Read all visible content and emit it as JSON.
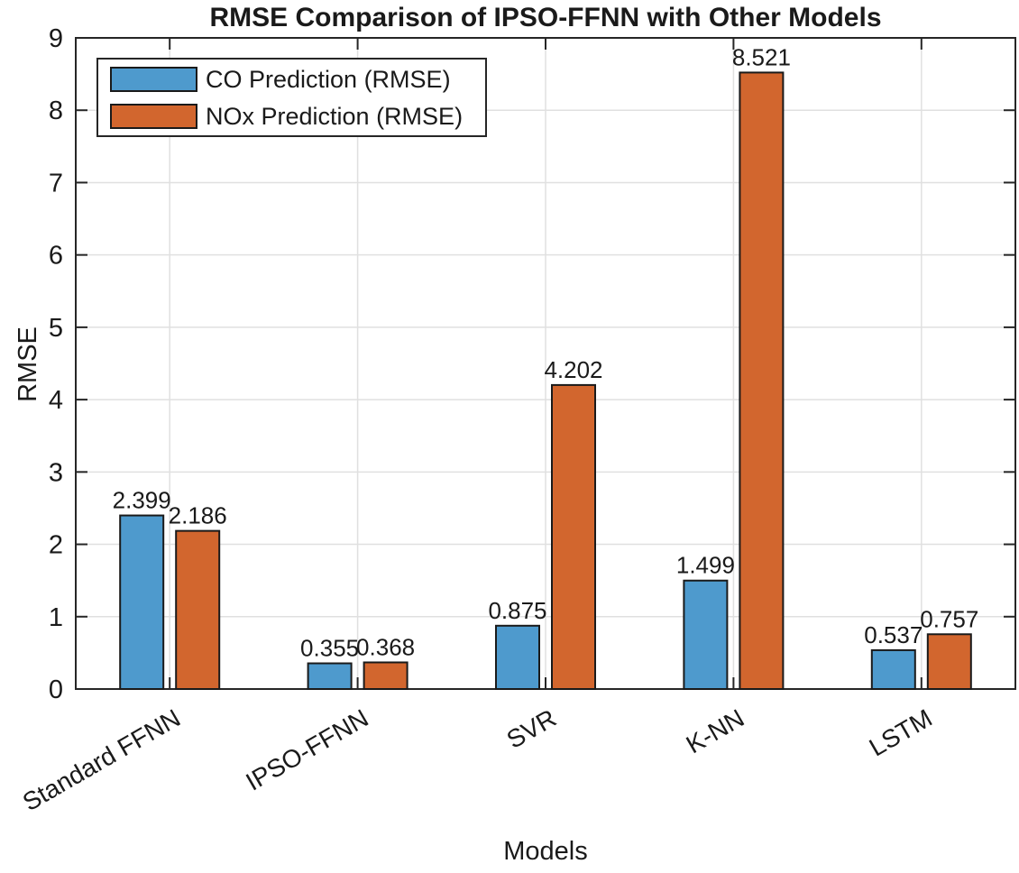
{
  "chart_data": {
    "type": "bar",
    "title": "RMSE Comparison of IPSO-FFNN with Other Models",
    "xlabel": "Models",
    "ylabel": "RMSE",
    "categories": [
      "Standard FFNN",
      "IPSO-FFNN",
      "SVR",
      "K-NN",
      "LSTM"
    ],
    "series": [
      {
        "name": "CO Prediction (RMSE)",
        "color": "#4E9ACD",
        "values": [
          2.399,
          0.355,
          0.875,
          1.499,
          0.537
        ]
      },
      {
        "name": "NOx Prediction (RMSE)",
        "color": "#D2662E",
        "values": [
          2.186,
          0.368,
          4.202,
          8.521,
          0.757
        ]
      }
    ],
    "ylim": [
      0,
      9
    ],
    "yticks": [
      0,
      1,
      2,
      3,
      4,
      5,
      6,
      7,
      8,
      9
    ],
    "grid": true,
    "legend_position": "top-left",
    "value_labels": true,
    "value_label_decimals": 3,
    "xtick_rotation_deg": 30,
    "colors": {
      "axis": "#262626",
      "grid": "#e0e0e0",
      "bar_edge": "#1a1a1a",
      "background": "#ffffff",
      "text": "#1a1a1a"
    }
  }
}
